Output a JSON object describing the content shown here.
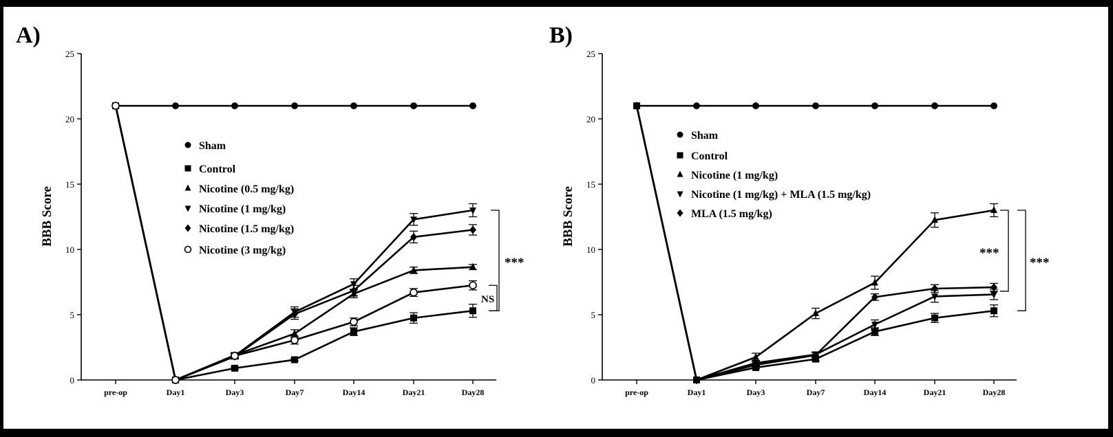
{
  "chart_data": [
    {
      "type": "line",
      "panel_label": "A)",
      "ylabel": "BBB Score",
      "ylim": [
        0,
        25
      ],
      "yticks": [
        "0",
        "5",
        "10",
        "15",
        "20",
        "25"
      ],
      "categories": [
        "pre-op",
        "Day1",
        "Day3",
        "Day7",
        "Day14",
        "Day21",
        "Day28"
      ],
      "legend_position": "center",
      "series": [
        {
          "name": "Sham",
          "marker": "circle",
          "values": [
            21,
            21,
            21,
            21,
            21,
            21,
            21
          ],
          "errors": [
            0,
            0,
            0,
            0,
            0,
            0,
            0
          ]
        },
        {
          "name": "Control",
          "marker": "square",
          "values": [
            21,
            0,
            0.9,
            1.55,
            3.7,
            4.75,
            5.3
          ],
          "errors": [
            0,
            0,
            0.1,
            0.1,
            0.3,
            0.4,
            0.5
          ]
        },
        {
          "name": "Nicotine (0.5 mg/kg)",
          "marker": "triangle-up",
          "values": [
            21,
            0,
            1.9,
            3.55,
            6.6,
            8.4,
            8.65
          ],
          "errors": [
            0,
            0,
            0.2,
            0.3,
            0.3,
            0.25,
            0.2
          ]
        },
        {
          "name": "Nicotine (1 mg/kg)",
          "marker": "triangle-down",
          "values": [
            21,
            0,
            1.85,
            5.2,
            7.35,
            12.3,
            13.0
          ],
          "errors": [
            0,
            0,
            0.2,
            0.4,
            0.4,
            0.45,
            0.5
          ]
        },
        {
          "name": "Nicotine (1.5 mg/kg)",
          "marker": "diamond",
          "values": [
            21,
            0,
            1.8,
            5.05,
            6.85,
            10.95,
            11.5
          ],
          "errors": [
            0,
            0,
            0.2,
            0.4,
            0.4,
            0.45,
            0.4
          ]
        },
        {
          "name": "Nicotine (3 mg/kg)",
          "marker": "open-circle",
          "values": [
            21,
            0,
            1.85,
            3.05,
            4.45,
            6.7,
            7.25
          ],
          "errors": [
            0,
            0,
            0.2,
            0.3,
            0.3,
            0.3,
            0.35
          ]
        }
      ],
      "annotations": [
        {
          "text": "***",
          "from": 13.0,
          "to": 5.3
        },
        {
          "text": "NS",
          "from": 7.25,
          "to": 5.3
        }
      ]
    },
    {
      "type": "line",
      "panel_label": "B)",
      "ylabel": "BBB Score",
      "ylim": [
        0,
        25
      ],
      "yticks": [
        "0",
        "5",
        "10",
        "15",
        "20",
        "25"
      ],
      "categories": [
        "pre-op",
        "Day1",
        "Day3",
        "Day7",
        "Day14",
        "Day21",
        "Day28"
      ],
      "legend_position": "top-left",
      "series": [
        {
          "name": "Sham",
          "marker": "circle",
          "values": [
            21,
            21,
            21,
            21,
            21,
            21,
            21
          ],
          "errors": [
            0,
            0,
            0,
            0,
            0,
            0,
            0
          ]
        },
        {
          "name": "Control",
          "marker": "square",
          "values": [
            21,
            0,
            0.95,
            1.6,
            3.7,
            4.75,
            5.3
          ],
          "errors": [
            0,
            0,
            0.1,
            0.15,
            0.3,
            0.35,
            0.45
          ]
        },
        {
          "name": "Nicotine (1 mg/kg)",
          "marker": "triangle-up",
          "values": [
            21,
            0,
            1.75,
            5.1,
            7.45,
            12.25,
            13.0
          ],
          "errors": [
            0,
            0,
            0.3,
            0.4,
            0.5,
            0.55,
            0.5
          ]
        },
        {
          "name": "Nicotine (1 mg/kg) + MLA (1.5 mg/kg)",
          "marker": "triangle-down",
          "values": [
            21,
            0,
            1.3,
            1.95,
            4.25,
            6.4,
            6.55
          ],
          "errors": [
            0,
            0,
            0.2,
            0.2,
            0.35,
            0.45,
            0.4
          ]
        },
        {
          "name": "MLA (1.5 mg/kg)",
          "marker": "diamond",
          "values": [
            21,
            0,
            1.15,
            1.9,
            6.35,
            7.0,
            7.1
          ],
          "errors": [
            0,
            0,
            0.2,
            0.2,
            0.25,
            0.3,
            0.3
          ]
        }
      ],
      "annotations": [
        {
          "text": "***",
          "from": 13.0,
          "to": 6.8
        },
        {
          "text": "***",
          "from": 13.0,
          "to": 5.3
        }
      ]
    }
  ]
}
